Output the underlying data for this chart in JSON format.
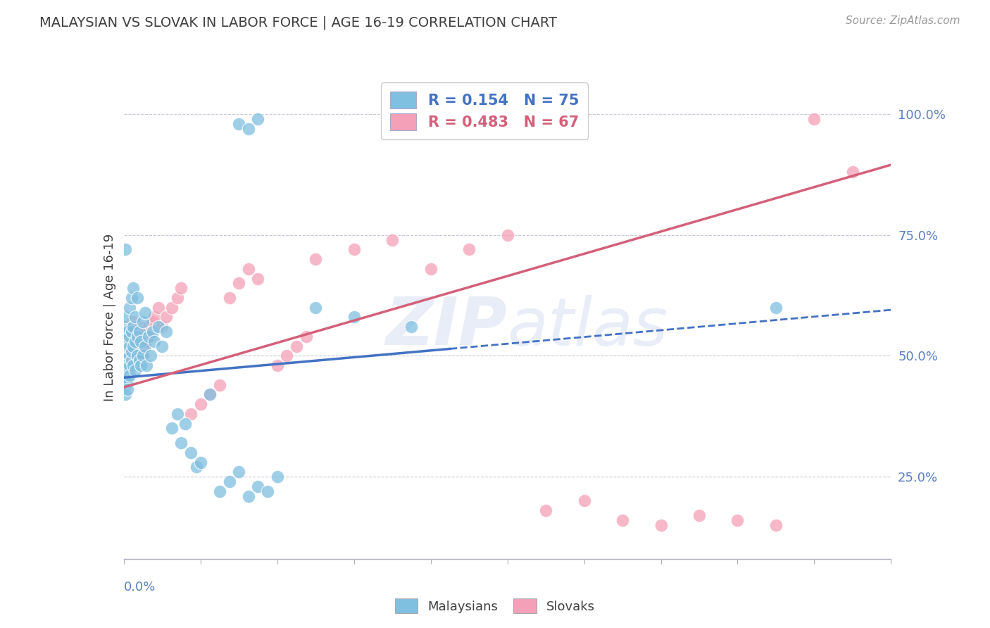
{
  "title": "MALAYSIAN VS SLOVAK IN LABOR FORCE | AGE 16-19 CORRELATION CHART",
  "source": "Source: ZipAtlas.com",
  "ylabel": "In Labor Force | Age 16-19",
  "watermark": "ZIPatlas",
  "blue_color": "#7fbfdf",
  "pink_color": "#f4a0b8",
  "blue_line_color": "#4472c4",
  "pink_line_color": "#d4607a",
  "tick_label_color": "#5b7fc4",
  "title_color": "#404040",
  "source_color": "#999999",
  "grid_color": "#c8c8d8",
  "xlim": [
    0.0,
    0.4
  ],
  "ylim": [
    0.08,
    1.08
  ],
  "ytick_vals": [
    0.25,
    0.5,
    0.75,
    1.0
  ],
  "ytick_labels": [
    "25.0%",
    "50.0%",
    "75.0%",
    "100.0%"
  ],
  "blue_trend": [
    0.455,
    0.595
  ],
  "pink_trend": [
    0.435,
    0.895
  ],
  "malaysian_x": [
    0.001,
    0.001,
    0.001,
    0.001,
    0.001,
    0.001,
    0.001,
    0.001,
    0.001,
    0.002,
    0.002,
    0.002,
    0.002,
    0.002,
    0.002,
    0.002,
    0.003,
    0.003,
    0.003,
    0.003,
    0.003,
    0.003,
    0.004,
    0.004,
    0.004,
    0.004,
    0.005,
    0.005,
    0.005,
    0.005,
    0.006,
    0.006,
    0.006,
    0.007,
    0.007,
    0.007,
    0.008,
    0.008,
    0.009,
    0.009,
    0.01,
    0.01,
    0.011,
    0.011,
    0.012,
    0.013,
    0.014,
    0.015,
    0.016,
    0.018,
    0.02,
    0.022,
    0.025,
    0.028,
    0.03,
    0.032,
    0.035,
    0.038,
    0.04,
    0.045,
    0.05,
    0.055,
    0.06,
    0.065,
    0.07,
    0.075,
    0.08,
    0.1,
    0.12,
    0.15,
    0.06,
    0.065,
    0.07,
    0.34,
    0.001
  ],
  "malaysian_y": [
    0.48,
    0.5,
    0.52,
    0.46,
    0.44,
    0.42,
    0.54,
    0.56,
    0.58,
    0.49,
    0.51,
    0.47,
    0.53,
    0.45,
    0.55,
    0.43,
    0.5,
    0.48,
    0.52,
    0.46,
    0.54,
    0.6,
    0.49,
    0.51,
    0.55,
    0.62,
    0.48,
    0.52,
    0.56,
    0.64,
    0.47,
    0.53,
    0.58,
    0.5,
    0.54,
    0.62,
    0.49,
    0.55,
    0.48,
    0.53,
    0.5,
    0.57,
    0.52,
    0.59,
    0.48,
    0.54,
    0.5,
    0.55,
    0.53,
    0.56,
    0.52,
    0.55,
    0.35,
    0.38,
    0.32,
    0.36,
    0.3,
    0.27,
    0.28,
    0.42,
    0.22,
    0.24,
    0.26,
    0.21,
    0.23,
    0.22,
    0.25,
    0.6,
    0.58,
    0.56,
    0.98,
    0.97,
    0.99,
    0.6,
    0.72
  ],
  "slovak_x": [
    0.001,
    0.001,
    0.001,
    0.001,
    0.001,
    0.002,
    0.002,
    0.002,
    0.002,
    0.003,
    0.003,
    0.003,
    0.003,
    0.004,
    0.004,
    0.004,
    0.005,
    0.005,
    0.005,
    0.006,
    0.006,
    0.007,
    0.007,
    0.008,
    0.008,
    0.009,
    0.01,
    0.01,
    0.011,
    0.012,
    0.013,
    0.014,
    0.015,
    0.016,
    0.018,
    0.02,
    0.022,
    0.025,
    0.028,
    0.03,
    0.035,
    0.04,
    0.045,
    0.05,
    0.055,
    0.06,
    0.065,
    0.07,
    0.08,
    0.085,
    0.09,
    0.095,
    0.1,
    0.12,
    0.14,
    0.16,
    0.18,
    0.2,
    0.22,
    0.24,
    0.26,
    0.28,
    0.3,
    0.32,
    0.34,
    0.36,
    0.38
  ],
  "slovak_y": [
    0.49,
    0.51,
    0.47,
    0.53,
    0.45,
    0.5,
    0.52,
    0.48,
    0.54,
    0.51,
    0.49,
    0.53,
    0.55,
    0.5,
    0.52,
    0.56,
    0.49,
    0.53,
    0.57,
    0.5,
    0.54,
    0.51,
    0.55,
    0.52,
    0.56,
    0.53,
    0.5,
    0.55,
    0.52,
    0.53,
    0.56,
    0.54,
    0.57,
    0.58,
    0.6,
    0.56,
    0.58,
    0.6,
    0.62,
    0.64,
    0.38,
    0.4,
    0.42,
    0.44,
    0.62,
    0.65,
    0.68,
    0.66,
    0.48,
    0.5,
    0.52,
    0.54,
    0.7,
    0.72,
    0.74,
    0.68,
    0.72,
    0.75,
    0.18,
    0.2,
    0.16,
    0.15,
    0.17,
    0.16,
    0.15,
    0.99,
    0.88
  ]
}
